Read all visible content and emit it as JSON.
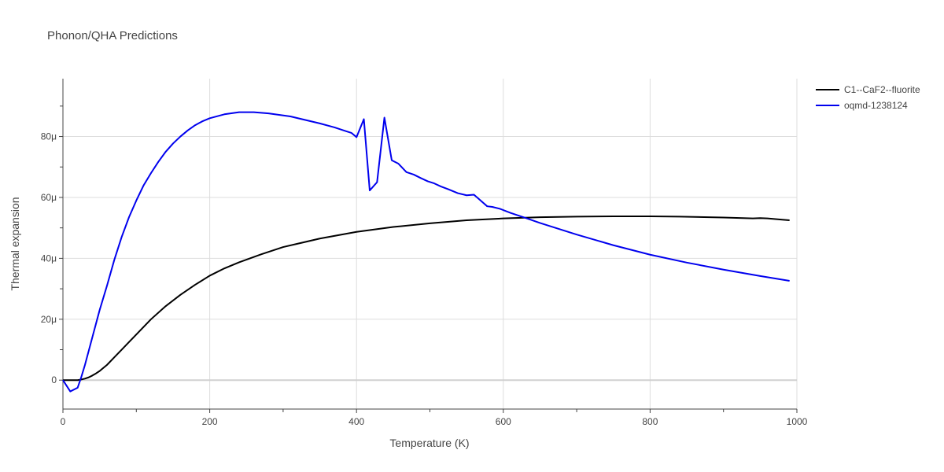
{
  "chart_data": {
    "type": "line",
    "title": "Phonon/QHA Predictions",
    "xlabel": "Temperature (K)",
    "ylabel": "Thermal expansion",
    "xlim": [
      0,
      1000
    ],
    "ylim": [
      -9.5e-06,
      9.9e-05
    ],
    "x_ticks": [
      0,
      200,
      400,
      600,
      800,
      1000
    ],
    "x_tick_labels": [
      "0",
      "200",
      "400",
      "600",
      "800",
      "1000"
    ],
    "y_ticks": [
      0,
      2e-05,
      4e-05,
      6e-05,
      8e-05
    ],
    "y_tick_labels": [
      "0",
      "20μ",
      "40μ",
      "60μ",
      "80μ"
    ],
    "grid": true,
    "legend_position": "top-right",
    "series": [
      {
        "name": "C1--CaF2--fluorite",
        "color": "#000000",
        "x": [
          0,
          10,
          20,
          25,
          30,
          35,
          40,
          45,
          50,
          60,
          70,
          80,
          90,
          100,
          120,
          140,
          160,
          180,
          200,
          220,
          240,
          270,
          300,
          350,
          400,
          450,
          500,
          550,
          600,
          650,
          700,
          750,
          800,
          840,
          900,
          940,
          950,
          960,
          980,
          990
        ],
        "y": [
          0,
          0,
          0,
          2e-07,
          5e-07,
          9e-07,
          1.5e-06,
          2.2e-06,
          3e-06,
          5e-06,
          7.5e-06,
          1e-05,
          1.25e-05,
          1.5e-05,
          2e-05,
          2.43e-05,
          2.8e-05,
          3.13e-05,
          3.43e-05,
          3.67e-05,
          3.87e-05,
          4.13e-05,
          4.37e-05,
          4.65e-05,
          4.87e-05,
          5.03e-05,
          5.15e-05,
          5.25e-05,
          5.31e-05,
          5.35e-05,
          5.37e-05,
          5.38e-05,
          5.38e-05,
          5.37e-05,
          5.34e-05,
          5.31e-05,
          5.32e-05,
          5.31e-05,
          5.27e-05,
          5.25e-05
        ]
      },
      {
        "name": "oqmd-1238124",
        "color": "#0000ee",
        "x": [
          0,
          10,
          20,
          25,
          30,
          40,
          50,
          60,
          70,
          80,
          90,
          100,
          110,
          120,
          130,
          140,
          150,
          160,
          170,
          180,
          190,
          200,
          220,
          240,
          250,
          260,
          280,
          310,
          350,
          370,
          385,
          393,
          400,
          410,
          418,
          428,
          438,
          448,
          457,
          468,
          478,
          488,
          497,
          505,
          515,
          525,
          538,
          550,
          560,
          568,
          578,
          585,
          595,
          610,
          630,
          650,
          700,
          750,
          800,
          850,
          900,
          950,
          990
        ],
        "y": [
          0,
          -3.7e-06,
          -2.5e-06,
          1e-06,
          5e-06,
          1.4e-05,
          2.3e-05,
          3.1e-05,
          3.95e-05,
          4.7e-05,
          5.35e-05,
          5.9e-05,
          6.4e-05,
          6.8e-05,
          7.17e-05,
          7.5e-05,
          7.77e-05,
          8e-05,
          8.2e-05,
          8.37e-05,
          8.5e-05,
          8.6e-05,
          8.73e-05,
          8.8e-05,
          8.8e-05,
          8.8e-05,
          8.76e-05,
          8.66e-05,
          8.43e-05,
          8.3e-05,
          8.18e-05,
          8.12e-05,
          7.98e-05,
          8.57e-05,
          6.23e-05,
          6.5e-05,
          8.62e-05,
          7.22e-05,
          7.11e-05,
          6.83e-05,
          6.75e-05,
          6.63e-05,
          6.53e-05,
          6.47e-05,
          6.36e-05,
          6.27e-05,
          6.14e-05,
          6.07e-05,
          6.09e-05,
          5.92e-05,
          5.71e-05,
          5.69e-05,
          5.63e-05,
          5.49e-05,
          5.33e-05,
          5.16e-05,
          4.78e-05,
          4.43e-05,
          4.12e-05,
          3.86e-05,
          3.63e-05,
          3.42e-05,
          3.26e-05
        ]
      }
    ]
  }
}
